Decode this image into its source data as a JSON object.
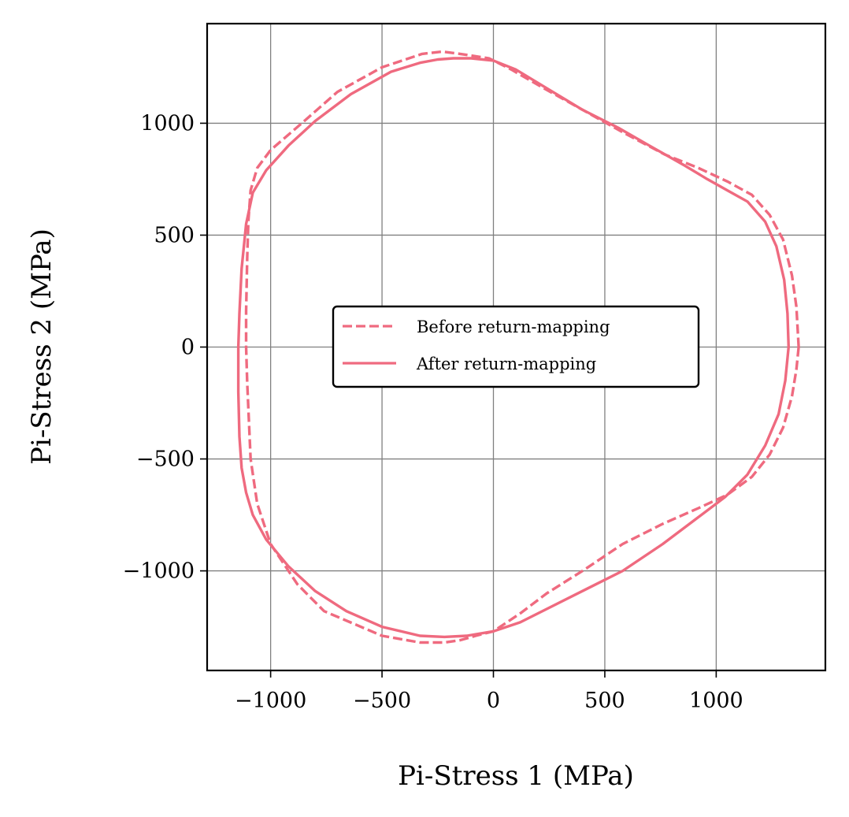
{
  "chart_data": {
    "type": "line",
    "title": "",
    "xlabel": "Pi-Stress 1 (MPa)",
    "ylabel": "Pi-Stress 2 (MPa)",
    "xlim": [
      -1285,
      1490
    ],
    "ylim": [
      -1445,
      1445
    ],
    "xticks": [
      -1000,
      -500,
      0,
      500,
      1000
    ],
    "yticks": [
      -1000,
      -500,
      0,
      500,
      1000
    ],
    "xtick_labels": [
      "−1000",
      "−500",
      "0",
      "500",
      "1000"
    ],
    "ytick_labels": [
      "−1000",
      "−500",
      "0",
      "500",
      "1000"
    ],
    "grid": true,
    "legend_position": "center",
    "colors": {
      "series": "#ef6a7f",
      "grid": "#808080",
      "frame": "#000000"
    },
    "series": [
      {
        "name": "Before return-mapping",
        "style": "dashed",
        "x": [
          1370,
          1360,
          1340,
          1300,
          1240,
          1160,
          1050,
          920,
          770,
          580,
          400,
          220,
          80,
          -20,
          -150,
          -230,
          -320,
          -500,
          -700,
          -860,
          -1000,
          -1060,
          -1090,
          -1100,
          -1105,
          -1110,
          -1110,
          -1105,
          -1090,
          -1060,
          -1000,
          -880,
          -760,
          -500,
          -330,
          -220,
          -150,
          -80,
          0,
          120,
          240,
          400,
          580,
          760,
          920,
          1050,
          1160,
          1240,
          1300,
          1340,
          1360,
          1370
        ],
        "y": [
          0,
          180,
          320,
          480,
          590,
          680,
          740,
          800,
          860,
          960,
          1060,
          1160,
          1240,
          1290,
          1310,
          1320,
          1310,
          1250,
          1140,
          1000,
          880,
          800,
          700,
          560,
          400,
          160,
          0,
          -160,
          -500,
          -700,
          -880,
          -1060,
          -1180,
          -1290,
          -1320,
          -1320,
          -1310,
          -1290,
          -1270,
          -1190,
          -1100,
          -1000,
          -880,
          -790,
          -720,
          -660,
          -580,
          -480,
          -360,
          -220,
          -100,
          0
        ]
      },
      {
        "name": "After return-mapping",
        "style": "solid",
        "x": [
          1325,
          1320,
          1305,
          1270,
          1220,
          1140,
          1050,
          960,
          860,
          700,
          560,
          400,
          250,
          100,
          0,
          -100,
          -180,
          -250,
          -330,
          -460,
          -640,
          -800,
          -920,
          -1020,
          -1080,
          -1110,
          -1130,
          -1140,
          -1145,
          -1145,
          -1140,
          -1130,
          -1110,
          -1080,
          -1020,
          -920,
          -800,
          -660,
          -500,
          -330,
          -220,
          -120,
          0,
          120,
          260,
          420,
          580,
          760,
          920,
          1040,
          1140,
          1220,
          1280,
          1310,
          1325
        ],
        "y": [
          0,
          150,
          300,
          450,
          560,
          650,
          700,
          750,
          810,
          900,
          980,
          1060,
          1150,
          1240,
          1280,
          1290,
          1290,
          1285,
          1270,
          1230,
          1130,
          1010,
          900,
          790,
          690,
          550,
          350,
          150,
          0,
          -200,
          -400,
          -540,
          -650,
          -750,
          -860,
          -980,
          -1090,
          -1180,
          -1250,
          -1290,
          -1295,
          -1290,
          -1270,
          -1230,
          -1160,
          -1080,
          -1000,
          -880,
          -760,
          -670,
          -570,
          -440,
          -300,
          -150,
          0
        ]
      }
    ]
  }
}
